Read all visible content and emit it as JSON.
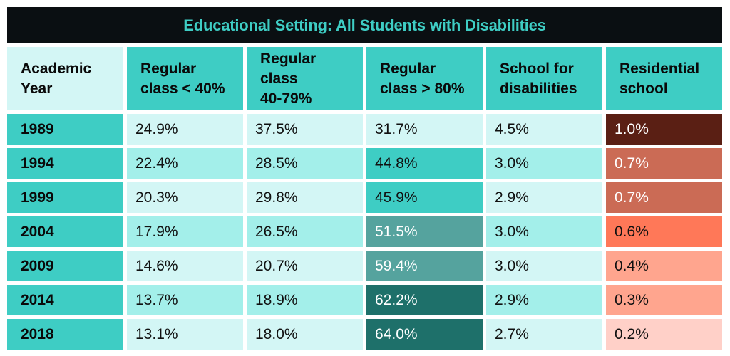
{
  "title": "Educational Setting: All Students with Disabilities",
  "chart_data": {
    "type": "table",
    "title": "Educational Setting: All Students with Disabilities",
    "columns": [
      "Academic\nYear",
      "Regular\nclass < 40%",
      "Regular\nclass\n40-79%",
      "Regular\nclass > 80%",
      "School for\ndisabilities",
      "Residential\nschool"
    ],
    "rows": [
      {
        "year": "1989",
        "values": [
          "24.9%",
          "37.5%",
          "31.7%",
          "4.5%",
          "1.0%"
        ]
      },
      {
        "year": "1994",
        "values": [
          "22.4%",
          "28.5%",
          "44.8%",
          "3.0%",
          "0.7%"
        ]
      },
      {
        "year": "1999",
        "values": [
          "20.3%",
          "29.8%",
          "45.9%",
          "2.9%",
          "0.7%"
        ]
      },
      {
        "year": "2004",
        "values": [
          "17.9%",
          "26.5%",
          "51.5%",
          "3.0%",
          "0.6%"
        ]
      },
      {
        "year": "2009",
        "values": [
          "14.6%",
          "20.7%",
          "59.4%",
          "3.0%",
          "0.4%"
        ]
      },
      {
        "year": "2014",
        "values": [
          "13.7%",
          "18.9%",
          "62.2%",
          "2.9%",
          "0.3%"
        ]
      },
      {
        "year": "2018",
        "values": [
          "13.1%",
          "18.0%",
          "64.0%",
          "2.7%",
          "0.2%"
        ]
      }
    ]
  },
  "colors": {
    "title_bg": "#0a0f12",
    "title_text": "#3ecdc4",
    "teal": "#3ecdc4",
    "light": "#d3f6f5",
    "mid": "#a3efea",
    "teal_dark1": "#55a39e",
    "teal_dark2": "#1e706a",
    "res_darkest": "#5a1f14",
    "res_dark": "#cb6b55",
    "res_bright": "#ff7858",
    "res_light": "#ffa58e",
    "res_lightest": "#ffd0c8"
  },
  "cell_colors": [
    [
      [
        "#d3f6f5",
        "#111"
      ],
      [
        "#d3f6f5",
        "#111"
      ],
      [
        "#d3f6f5",
        "#111"
      ],
      [
        "#d3f6f5",
        "#111"
      ],
      [
        "#5a1f14",
        "#fff"
      ]
    ],
    [
      [
        "#a3efea",
        "#111"
      ],
      [
        "#a3efea",
        "#111"
      ],
      [
        "#3ecdc4",
        "#111"
      ],
      [
        "#a3efea",
        "#111"
      ],
      [
        "#cb6b55",
        "#fff"
      ]
    ],
    [
      [
        "#d3f6f5",
        "#111"
      ],
      [
        "#d3f6f5",
        "#111"
      ],
      [
        "#3ecdc4",
        "#111"
      ],
      [
        "#d3f6f5",
        "#111"
      ],
      [
        "#cb6b55",
        "#fff"
      ]
    ],
    [
      [
        "#a3efea",
        "#111"
      ],
      [
        "#a3efea",
        "#111"
      ],
      [
        "#55a39e",
        "#fff"
      ],
      [
        "#a3efea",
        "#111"
      ],
      [
        "#ff7858",
        "#111"
      ]
    ],
    [
      [
        "#d3f6f5",
        "#111"
      ],
      [
        "#d3f6f5",
        "#111"
      ],
      [
        "#55a39e",
        "#fff"
      ],
      [
        "#d3f6f5",
        "#111"
      ],
      [
        "#ffa58e",
        "#111"
      ]
    ],
    [
      [
        "#a3efea",
        "#111"
      ],
      [
        "#a3efea",
        "#111"
      ],
      [
        "#1e706a",
        "#fff"
      ],
      [
        "#a3efea",
        "#111"
      ],
      [
        "#ffa58e",
        "#111"
      ]
    ],
    [
      [
        "#d3f6f5",
        "#111"
      ],
      [
        "#d3f6f5",
        "#111"
      ],
      [
        "#1e706a",
        "#fff"
      ],
      [
        "#d3f6f5",
        "#111"
      ],
      [
        "#ffd0c8",
        "#111"
      ]
    ]
  ]
}
